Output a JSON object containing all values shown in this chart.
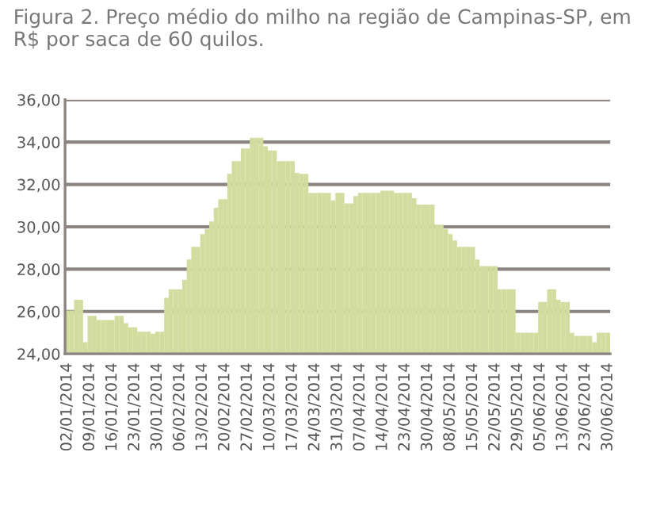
{
  "chart_data": {
    "type": "bar",
    "title": "Figura 2. Preço médio do milho na região de Campinas-SP, em R$ por saca de 60 quilos.",
    "categories": [
      "02/01/2014",
      null,
      null,
      null,
      null,
      "09/01/2014",
      null,
      null,
      null,
      null,
      "16/01/2014",
      null,
      null,
      null,
      null,
      "23/01/2014",
      null,
      null,
      null,
      null,
      "30/01/2014",
      null,
      null,
      null,
      null,
      "06/02/2014",
      null,
      null,
      null,
      null,
      "13/02/2014",
      null,
      null,
      null,
      null,
      "20/02/2014",
      null,
      null,
      null,
      null,
      "27/02/2014",
      null,
      null,
      null,
      null,
      "10/03/2014",
      null,
      null,
      null,
      null,
      "17/03/2014",
      null,
      null,
      null,
      null,
      "24/03/2014",
      null,
      null,
      null,
      null,
      "31/03/2014",
      null,
      null,
      null,
      null,
      "07/04/2014",
      null,
      null,
      null,
      null,
      "14/04/2014",
      null,
      null,
      null,
      null,
      "23/04/2014",
      null,
      null,
      null,
      null,
      "30/04/2014",
      null,
      null,
      null,
      null,
      "08/05/2014",
      null,
      null,
      null,
      null,
      "15/05/2014",
      null,
      null,
      null,
      null,
      "22/05/2014",
      null,
      null,
      null,
      null,
      "29/05/2014",
      null,
      null,
      null,
      null,
      "05/06/2014",
      null,
      null,
      null,
      null,
      "13/06/2014",
      null,
      null,
      null,
      null,
      "23/06/2014",
      null,
      null,
      null,
      null,
      "30/06/2014"
    ],
    "values": [
      26.05,
      26.05,
      26.55,
      26.55,
      24.55,
      25.8,
      25.8,
      25.6,
      25.6,
      25.6,
      25.6,
      25.8,
      25.8,
      25.45,
      25.25,
      25.25,
      25.05,
      25.05,
      25.05,
      24.95,
      25.05,
      25.05,
      26.65,
      27.05,
      27.05,
      27.05,
      27.5,
      28.45,
      29.05,
      29.05,
      29.65,
      29.9,
      30.25,
      30.9,
      31.3,
      31.3,
      32.5,
      33.1,
      33.1,
      33.7,
      33.7,
      34.2,
      34.2,
      34.2,
      33.8,
      33.6,
      33.6,
      33.1,
      33.1,
      33.1,
      33.1,
      32.55,
      32.5,
      32.5,
      31.6,
      31.6,
      31.6,
      31.6,
      31.6,
      31.25,
      31.6,
      31.6,
      31.1,
      31.1,
      31.45,
      31.6,
      31.6,
      31.6,
      31.6,
      31.6,
      31.7,
      31.7,
      31.7,
      31.6,
      31.6,
      31.6,
      31.6,
      31.35,
      31.05,
      31.05,
      31.05,
      31.05,
      30.1,
      30.1,
      29.9,
      29.65,
      29.35,
      29.05,
      29.05,
      29.05,
      29.05,
      28.45,
      28.15,
      28.15,
      28.15,
      28.15,
      27.05,
      27.05,
      27.05,
      27.05,
      25.0,
      25.0,
      25.0,
      25.0,
      25.0,
      26.45,
      26.45,
      27.05,
      27.05,
      26.55,
      26.45,
      26.45,
      25.0,
      24.85,
      24.85,
      24.85,
      24.85,
      24.55,
      25.0,
      25.0,
      25.0
    ],
    "color": "#d2dc9f",
    "ylim": [
      24,
      36
    ],
    "yticks": [
      {
        "value": 24,
        "label": "24,00"
      },
      {
        "value": 26,
        "label": "26,00"
      },
      {
        "value": 28,
        "label": "28,00"
      },
      {
        "value": 30,
        "label": "30,00"
      },
      {
        "value": 32,
        "label": "32,00"
      },
      {
        "value": 34,
        "label": "34,00"
      },
      {
        "value": 36,
        "label": "36,00"
      }
    ],
    "grid": "y",
    "legend": false
  }
}
